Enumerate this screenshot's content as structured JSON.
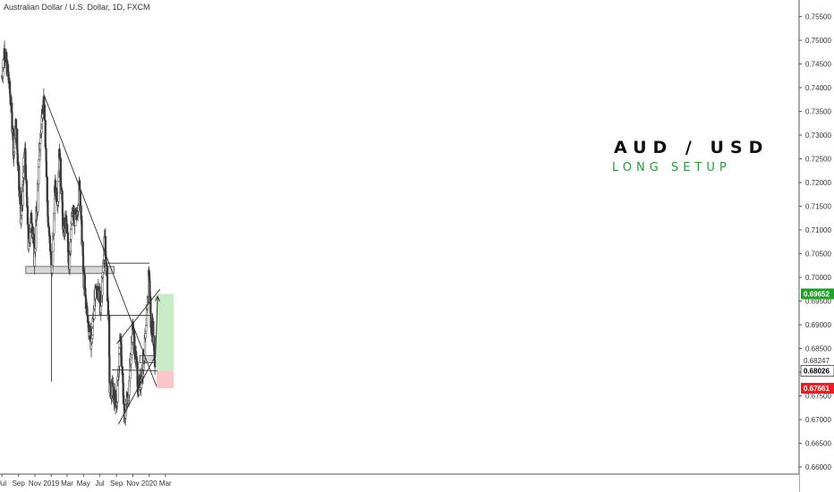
{
  "header": {
    "title": "Australian Dollar / U.S. Dollar, 1D, FXCM"
  },
  "annotation": {
    "pair": "AUD / USD",
    "setup": "LONG SETUP"
  },
  "colors": {
    "candle": "#3a3a3a",
    "target_zone": "#c8ecc8",
    "stop_zone": "#f9c7c7",
    "target_badge": "#22a22a",
    "stop_badge": "#ee1c24",
    "current_badge": "#000000",
    "setup_text": "#2a9a3a"
  },
  "chart_data": {
    "type": "candlestick",
    "title": "Australian Dollar / U.S. Dollar, 1D, FXCM",
    "xlabel": "",
    "ylabel": "",
    "ylim": [
      0.6585,
      0.7585
    ],
    "x_ticks": [
      {
        "label": "Jul",
        "date": "2018-07-01"
      },
      {
        "label": "Sep",
        "date": "2018-09-01"
      },
      {
        "label": "Nov",
        "date": "2018-11-01"
      },
      {
        "label": "2019",
        "date": "2019-01-01"
      },
      {
        "label": "Mar",
        "date": "2019-03-01"
      },
      {
        "label": "May",
        "date": "2019-05-01"
      },
      {
        "label": "Jul",
        "date": "2019-07-01"
      },
      {
        "label": "Sep",
        "date": "2019-09-01"
      },
      {
        "label": "Nov",
        "date": "2019-11-01"
      },
      {
        "label": "2020",
        "date": "2020-01-01"
      },
      {
        "label": "Mar",
        "date": "2020-03-01"
      }
    ],
    "y_ticks": [
      "0.66000",
      "0.66500",
      "0.67000",
      "0.67500",
      "0.68000",
      "0.68500",
      "0.69000",
      "0.69500",
      "0.70000",
      "0.70500",
      "0.71000",
      "0.71500",
      "0.72000",
      "0.72500",
      "0.73000",
      "0.73500",
      "0.74000",
      "0.74500",
      "0.75000",
      "0.75500"
    ],
    "price_badges": [
      {
        "label": "0.69652",
        "value": 0.69652,
        "kind": "target"
      },
      {
        "label": "0.68247",
        "value": 0.68247,
        "kind": "plain"
      },
      {
        "label": "0.68026",
        "value": 0.68026,
        "kind": "current"
      },
      {
        "label": "0.67661",
        "value": 0.67661,
        "kind": "stop"
      }
    ],
    "anchors": [
      [
        "2018-07-01",
        0.742
      ],
      [
        "2018-07-10",
        0.748
      ],
      [
        "2018-07-24",
        0.743
      ],
      [
        "2018-08-05",
        0.736
      ],
      [
        "2018-08-14",
        0.726
      ],
      [
        "2018-08-22",
        0.732
      ],
      [
        "2018-09-10",
        0.713
      ],
      [
        "2018-09-25",
        0.727
      ],
      [
        "2018-10-08",
        0.707
      ],
      [
        "2018-10-20",
        0.713
      ],
      [
        "2018-10-30",
        0.704
      ],
      [
        "2018-11-20",
        0.728
      ],
      [
        "2018-12-03",
        0.739
      ],
      [
        "2018-12-20",
        0.713
      ],
      [
        "2018-12-31",
        0.704
      ],
      [
        "2019-01-03",
        0.7
      ],
      [
        "2019-01-15",
        0.719
      ],
      [
        "2019-01-25",
        0.717
      ],
      [
        "2019-02-01",
        0.727
      ],
      [
        "2019-02-15",
        0.709
      ],
      [
        "2019-02-25",
        0.712
      ],
      [
        "2019-03-08",
        0.703
      ],
      [
        "2019-03-20",
        0.713
      ],
      [
        "2019-04-05",
        0.712
      ],
      [
        "2019-04-17",
        0.72
      ],
      [
        "2019-05-01",
        0.7
      ],
      [
        "2019-05-15",
        0.692
      ],
      [
        "2019-05-31",
        0.686
      ],
      [
        "2019-06-10",
        0.695
      ],
      [
        "2019-06-25",
        0.698
      ],
      [
        "2019-07-05",
        0.693
      ],
      [
        "2019-07-15",
        0.705
      ],
      [
        "2019-07-20",
        0.708
      ],
      [
        "2019-08-01",
        0.693
      ],
      [
        "2019-08-07",
        0.676
      ],
      [
        "2019-08-20",
        0.676
      ],
      [
        "2019-09-02",
        0.673
      ],
      [
        "2019-09-15",
        0.688
      ],
      [
        "2019-10-01",
        0.671
      ],
      [
        "2019-10-15",
        0.675
      ],
      [
        "2019-11-01",
        0.69
      ],
      [
        "2019-11-20",
        0.677
      ],
      [
        "2019-12-01",
        0.678
      ],
      [
        "2019-12-20",
        0.688
      ],
      [
        "2019-12-31",
        0.702
      ],
      [
        "2020-01-07",
        0.69
      ],
      [
        "2020-01-15",
        0.689
      ],
      [
        "2020-01-22",
        0.682
      ]
    ],
    "candle_start": "2018-07-01",
    "candle_end": "2020-01-22",
    "zones": [
      {
        "kind": "target",
        "from": "2020-01-28",
        "to": "2020-04-01",
        "y1": 0.68026,
        "y2": 0.69652
      },
      {
        "kind": "stop",
        "from": "2020-01-28",
        "to": "2020-04-01",
        "y1": 0.67661,
        "y2": 0.68026
      },
      {
        "kind": "support",
        "from": "2018-09-28",
        "to": "2019-08-23",
        "y1": 0.7008,
        "y2": 0.7023
      },
      {
        "kind": "support",
        "from": "2019-11-26",
        "to": "2020-01-21",
        "y1": 0.682,
        "y2": 0.6835
      }
    ],
    "lines": [
      {
        "from": [
          "2018-12-05",
          0.7385
        ],
        "to": [
          "2020-01-28",
          0.677
        ]
      },
      {
        "from": [
          "2019-09-08",
          0.669
        ],
        "to": [
          "2020-01-20",
          0.683
        ]
      },
      {
        "from": [
          "2019-09-02",
          0.686
        ],
        "to": [
          "2020-02-10",
          0.6975
        ]
      },
      {
        "from": [
          "2019-07-10",
          0.703
        ],
        "to": [
          "2020-01-02",
          0.703
        ]
      },
      {
        "from": [
          "2019-05-10",
          0.692
        ],
        "to": [
          "2020-01-10",
          0.692
        ]
      },
      {
        "from": [
          "2019-08-15",
          0.6805
        ],
        "to": [
          "2020-01-31",
          0.6803
        ]
      },
      {
        "from": [
          "2019-01-02",
          0.701
        ],
        "to": [
          "2019-01-02",
          0.678
        ]
      }
    ],
    "projection": [
      [
        "2020-01-24",
        0.683
      ],
      [
        "2020-02-01",
        0.696
      ]
    ]
  }
}
